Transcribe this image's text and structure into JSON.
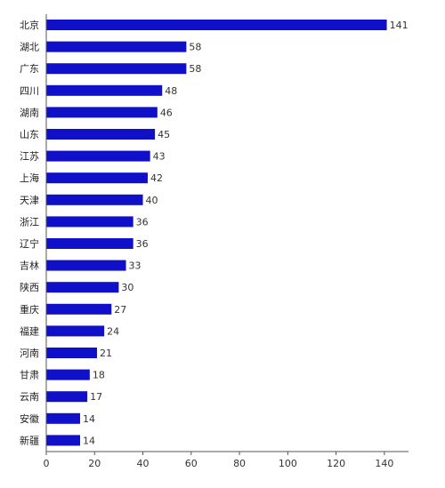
{
  "chart_data": {
    "type": "bar",
    "orientation": "horizontal",
    "categories": [
      "北京",
      "湖北",
      "广东",
      "四川",
      "湖南",
      "山东",
      "江苏",
      "上海",
      "天津",
      "浙江",
      "辽宁",
      "吉林",
      "陕西",
      "重庆",
      "福建",
      "河南",
      "甘肃",
      "云南",
      "安徽",
      "新疆"
    ],
    "values": [
      141,
      58,
      58,
      48,
      46,
      45,
      43,
      42,
      40,
      36,
      36,
      33,
      30,
      27,
      24,
      21,
      18,
      17,
      14,
      14
    ],
    "xlim": [
      0,
      150
    ],
    "xticks": [
      0,
      20,
      40,
      60,
      80,
      100,
      120,
      140
    ],
    "title": "",
    "xlabel": "",
    "ylabel": "",
    "grid": false,
    "bar_color": "#1010c8"
  }
}
